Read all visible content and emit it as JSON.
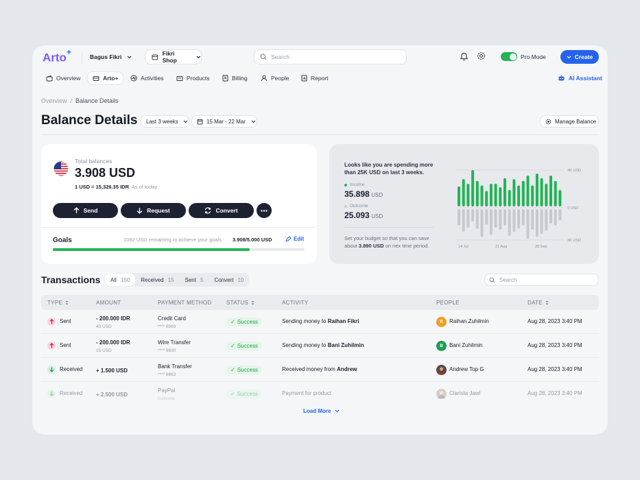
{
  "app": {
    "logo": "Arto",
    "logo_plus": "+"
  },
  "topbar": {
    "user": "Bagus Fikri",
    "shop": "Fikri Shop",
    "search_placeholder": "Search",
    "pro_mode": "Pro Mode",
    "create": "Create"
  },
  "nav": {
    "items": [
      "Overview",
      "Arto+",
      "Activities",
      "Products",
      "Billing",
      "People",
      "Report"
    ],
    "ai": "AI Assistant"
  },
  "breadcrumb": {
    "root": "Overview",
    "sep": "/",
    "current": "Balance Details"
  },
  "page": {
    "title": "Balance Details",
    "range": "Last 3 weeks",
    "dates": "15 Mar - 22 Mar",
    "manage": "Manage Balance"
  },
  "balance": {
    "label": "Total balances",
    "amount": "3.908 USD",
    "rate": "1 USD = 15,326.35 IDR",
    "rate_note": ", As of today"
  },
  "actions": {
    "send": "Send",
    "request": "Request",
    "convert": "Convert"
  },
  "goals": {
    "label": "Goals",
    "remaining": "1092 USD remaining ro achieve your goals",
    "progress": "3.908/5.000 USD",
    "edit": "Edit",
    "fraction": 0.7816
  },
  "insight": {
    "msg_a": "Looks like you are spending more",
    "msg_b": "than 25K USD on last 3 weeks.",
    "income_label": "Income",
    "income_value": "35.898",
    "income_unit": "USD",
    "outcome_label": "Outcome",
    "outcome_value": "25.093",
    "outcome_unit": "USD",
    "note_a": "Set your budget so that you can save",
    "note_b_pre": "about ",
    "note_b_bold": "3.890 USD",
    "note_b_post": " on nex time period."
  },
  "chart_data": {
    "type": "bar",
    "ylabels": [
      "4K USD",
      "0 USD",
      "3K USD"
    ],
    "xlabels": [
      "14 Jul",
      "21 Aug",
      "28 Sep"
    ],
    "income": [
      2.2,
      3.0,
      2.5,
      4.0,
      2.8,
      2.3,
      1.7,
      2.5,
      2.5,
      2.1,
      3.1,
      1.8,
      3.0,
      2.3,
      2.8,
      3.4,
      2.3,
      3.6,
      3.1,
      2.5,
      3.4,
      2.8,
      1.8
    ],
    "outcome": [
      1.6,
      2.2,
      1.8,
      1.2,
      1.9,
      2.7,
      1.5,
      2.5,
      1.8,
      2.0,
      1.6,
      2.6,
      2.2,
      1.9,
      1.6,
      2.9,
      2.0,
      2.7,
      2.4,
      2.1,
      1.4,
      1.6,
      1.1
    ],
    "colors": {
      "income": "#22b455",
      "outcome": "#c7c9ce"
    }
  },
  "transactions": {
    "title": "Transactions",
    "search_placeholder": "Search",
    "tabs": [
      {
        "label": "All",
        "count": "150"
      },
      {
        "label": "Received",
        "count": "15"
      },
      {
        "label": "Sent",
        "count": "5"
      },
      {
        "label": "Convert",
        "count": "10"
      }
    ],
    "headers": [
      "TYPE",
      "AMOUNT",
      "PAYMENT METHOD",
      "STATUS",
      "ACTIVITY",
      "PEOPLE",
      "DATE"
    ],
    "rows": [
      {
        "type": "Sent",
        "amount": "- 200.000 IDR",
        "amount_sub": "40 USD",
        "method": "Credit Card",
        "method_sub": "**** 6969",
        "status": "Success",
        "act_pre": "Sending money to ",
        "act_name": "Raihan Fikri",
        "person": "Raihan Zuhilmin",
        "initial": "R",
        "date": "Aug 28, 2023 3:40 PM"
      },
      {
        "type": "Sent",
        "amount": "- 200.000 IDR",
        "amount_sub": "15 USD",
        "method": "Wire Transfer",
        "method_sub": "**** 9830",
        "status": "Success",
        "act_pre": "Sending money to ",
        "act_name": "Bani Zuhilmin",
        "person": "Bani Zuhilmin",
        "initial": "B",
        "date": "Aug 28, 2023 3:40 PM"
      },
      {
        "type": "Received",
        "amount": "+ 1.500 USD",
        "amount_sub": "",
        "method": "Bank Transfer",
        "method_sub": "**** 6663",
        "status": "Success",
        "act_pre": "Received money from ",
        "act_name": "Andrew",
        "person": "Andrew Top G",
        "initial": "",
        "date": "Aug 28, 2023 3:40 PM"
      },
      {
        "type": "Received",
        "amount": "+ 2.500 USD",
        "amount_sub": "",
        "method": "PayPal",
        "method_sub": "Gabriela",
        "status": "Success",
        "act_pre": "Payment for product",
        "act_name": "",
        "person": "Clarista Jawl",
        "initial": "",
        "date": "Aug 28, 2023 3:40 PM"
      }
    ],
    "load_more": "Load More"
  }
}
